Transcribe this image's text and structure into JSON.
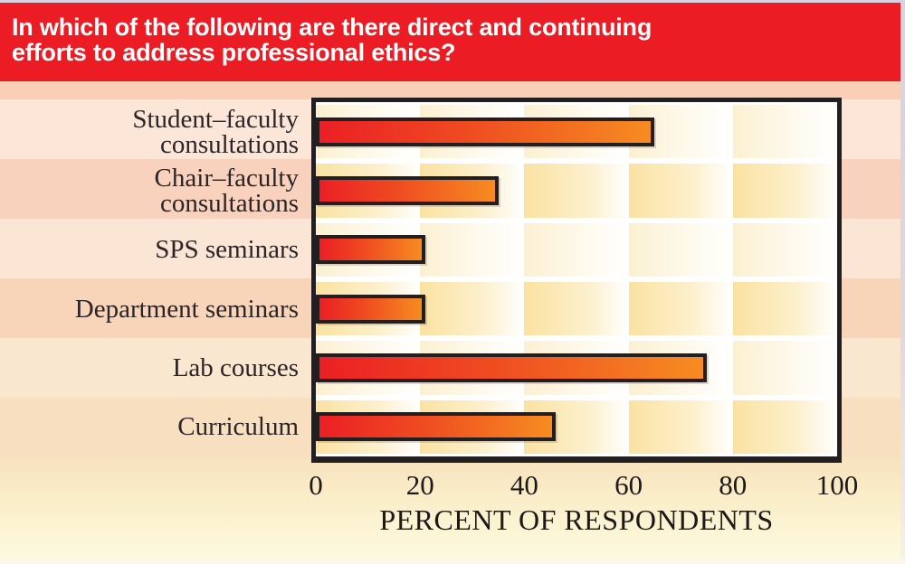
{
  "banner": {
    "title_line1": "In which of the following are there direct and continuing",
    "title_line2": "efforts to address professional ethics?"
  },
  "chart_data": {
    "type": "bar",
    "orientation": "horizontal",
    "title": "In which of the following are there direct and continuing efforts to address professional ethics?",
    "categories": [
      "Student–faculty consultations",
      "Chair–faculty consultations",
      "SPS seminars",
      "Department seminars",
      "Lab courses",
      "Curriculum"
    ],
    "category_label_lines": [
      [
        "Student–faculty",
        "consultations"
      ],
      [
        "Chair–faculty",
        "consultations"
      ],
      [
        "SPS seminars"
      ],
      [
        "Department seminars"
      ],
      [
        "Lab courses"
      ],
      [
        "Curriculum"
      ]
    ],
    "values": [
      65,
      35,
      21,
      21,
      75,
      46
    ],
    "xlabel": "PERCENT OF RESPONDENTS",
    "xlim": [
      0,
      100
    ],
    "xticks": [
      0,
      20,
      40,
      60,
      80,
      100
    ],
    "grid": "checkerboard-background",
    "legend": "none",
    "colors": {
      "banner_red": "#EC1C24",
      "bar_gradient_start": "#EB1F25",
      "bar_gradient_end": "#F68C21",
      "bar_border": "#231F20",
      "plot_border": "#231F20",
      "band_light_peach": "#FBE6D8",
      "band_dark_peach": "#F8D2BC",
      "cell_yellow": "#FBE2A2"
    }
  }
}
